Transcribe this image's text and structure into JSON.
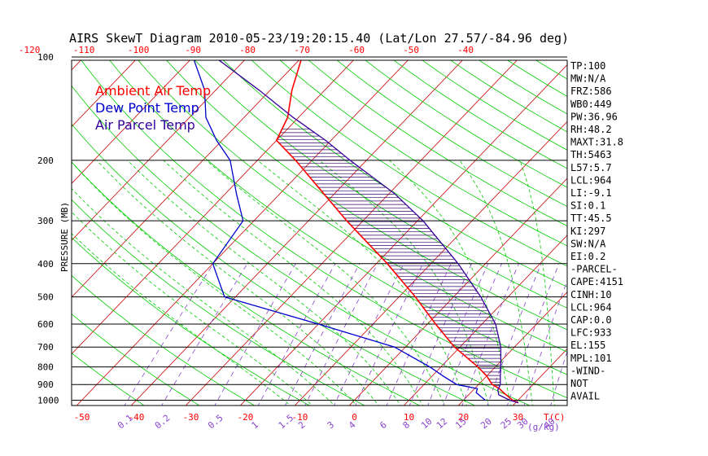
{
  "title": "AIRS SkewT Diagram 2010-05-23/19:20:15.40 (Lat/Lon 27.57/-84.96 deg)",
  "colors": {
    "ambient": "#ff0000",
    "dewpoint": "#0000cc",
    "parcel": "#330099",
    "isotherm": "#cc0000",
    "dry_adiabat": "#00cc00",
    "mixing_ratio": "#8844cc",
    "moist_adiabat": "#00cc00",
    "isobar": "#000000",
    "hatch": "#330066"
  },
  "legend": [
    {
      "label": "Ambient Air Temp",
      "color": "#ff0000"
    },
    {
      "label": "Dew Point Temp",
      "color": "#0000cc"
    },
    {
      "label": "Air Parcel Temp",
      "color": "#330099"
    }
  ],
  "axis": {
    "ylabel": "PRESSURE (MB)",
    "pressure_ticks": [
      "100",
      "200",
      "300",
      "400",
      "500",
      "600",
      "700",
      "800",
      "900",
      "1000"
    ],
    "top_temp_ticks": [
      "-120",
      "-110",
      "-100",
      "-90",
      "-80",
      "-70",
      "-60",
      "-50",
      "-40"
    ],
    "bottom_temp_ticks": [
      "-50",
      "-40",
      "-30",
      "-20",
      "-10",
      "0",
      "10",
      "20",
      "30"
    ],
    "bottom_temp_label": "T(C)",
    "mixing_ratio_ticks": [
      "0.1",
      "0.2",
      "0.5",
      "1",
      "1.5",
      "2",
      "3",
      "4",
      "6",
      "8",
      "10",
      "12",
      "15",
      "20",
      "25",
      "30",
      "40"
    ],
    "mixing_ratio_label": "(g/kg)"
  },
  "params": [
    "TP:100",
    "MW:N/A",
    "FRZ:586",
    "WB0:449",
    "PW:36.96",
    "RH:48.2",
    "MAXT:31.8",
    "TH:5463",
    "L57:5.7",
    "LCL:964",
    "LI:-9.1",
    "SI:0.1",
    "TT:45.5",
    "KI:297",
    "SW:N/A",
    "EI:0.2",
    "-PARCEL-",
    "CAPE:4151",
    "CINH:10",
    "LCL:964",
    "CAP:0.0",
    "LFC:933",
    "EL:155",
    "MPL:101",
    "-WIND-",
    "NOT",
    "AVAIL"
  ],
  "chart_data": {
    "type": "line",
    "title": "AIRS SkewT Diagram 2010-05-23/19:20:15.40 (Lat/Lon 27.57/-84.96 deg)",
    "ylabel": "PRESSURE (MB)",
    "xlabel": "T(C)",
    "y_scale": "log",
    "ylim": [
      1050,
      100
    ],
    "xlim_bottom": [
      -52,
      38
    ],
    "series": [
      {
        "name": "Ambient Air Temp",
        "pressure": [
          1017,
          1000,
          950,
          925,
          900,
          850,
          800,
          700,
          600,
          500,
          400,
          300,
          250,
          200,
          175,
          150,
          125,
          100
        ],
        "temperature": [
          30.5,
          29,
          26,
          24.5,
          22.5,
          20,
          16.8,
          9,
          1.5,
          -7,
          -18,
          -33,
          -42,
          -53,
          -60,
          -62,
          -66,
          -70
        ]
      },
      {
        "name": "Dew Point Temp",
        "pressure": [
          1000,
          950,
          925,
          900,
          850,
          800,
          700,
          600,
          500,
          400,
          300,
          250,
          200,
          175,
          150,
          125,
          100
        ],
        "temperature": [
          24,
          21,
          20.5,
          16,
          12,
          8,
          -2,
          -20,
          -42,
          -50,
          -52,
          -58,
          -65,
          -71,
          -77,
          -82,
          -90
        ]
      },
      {
        "name": "Air Parcel Temp",
        "pressure": [
          1017,
          1000,
          964,
          933,
          900,
          850,
          800,
          700,
          600,
          500,
          400,
          300,
          250,
          200,
          175,
          150,
          125,
          100
        ],
        "temperature": [
          30.5,
          28.5,
          25.5,
          24.5,
          24,
          22.5,
          21,
          17.5,
          12.5,
          5,
          -5,
          -19,
          -29,
          -43,
          -51,
          -61,
          -72,
          -86
        ]
      }
    ]
  }
}
